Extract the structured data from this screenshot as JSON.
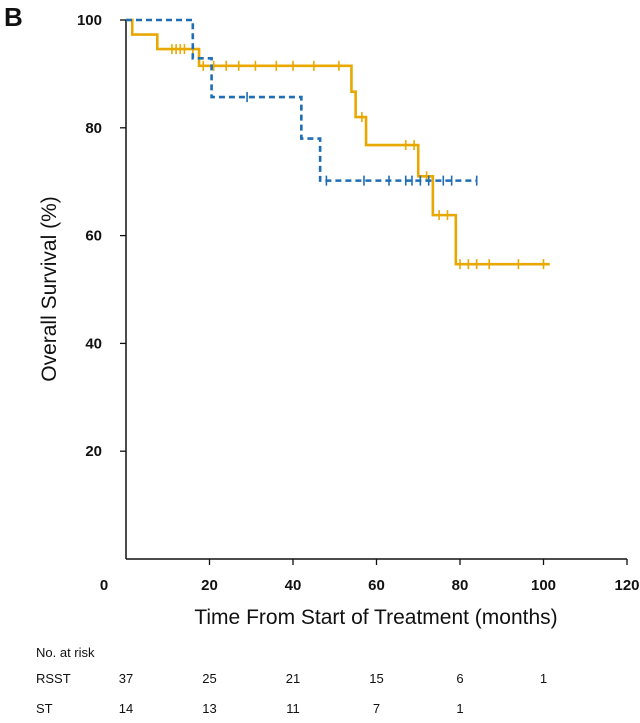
{
  "panel_label": "B",
  "chart_data": {
    "type": "line",
    "xlabel": "Time From Start of Treatment (months)",
    "ylabel": "Overall Survival (%)",
    "xlim": [
      0,
      120
    ],
    "ylim": [
      0,
      100
    ],
    "x_ticks": [
      0,
      20,
      40,
      60,
      80,
      100,
      120
    ],
    "y_ticks": [
      20,
      40,
      60,
      80,
      100
    ],
    "grid": false,
    "series": [
      {
        "name": "RSST",
        "color": "#e8a800",
        "style": "solid",
        "steps": [
          [
            0,
            100
          ],
          [
            1.5,
            97.3
          ],
          [
            7.5,
            94.6
          ],
          [
            17.5,
            91.5
          ],
          [
            54,
            86.7
          ],
          [
            55,
            82
          ],
          [
            57.5,
            76.8
          ],
          [
            70,
            71
          ],
          [
            73.5,
            63.8
          ],
          [
            79,
            54.7
          ],
          [
            101.5,
            54.7
          ]
        ],
        "censored": [
          [
            11,
            94.6
          ],
          [
            12,
            94.6
          ],
          [
            13,
            94.6
          ],
          [
            14,
            94.6
          ],
          [
            16,
            94.6
          ],
          [
            18.5,
            91.5
          ],
          [
            21,
            91.5
          ],
          [
            24,
            91.5
          ],
          [
            27,
            91.5
          ],
          [
            31,
            91.5
          ],
          [
            36,
            91.5
          ],
          [
            40,
            91.5
          ],
          [
            45,
            91.5
          ],
          [
            51,
            91.5
          ],
          [
            56.5,
            82
          ],
          [
            67,
            76.8
          ],
          [
            69,
            76.8
          ],
          [
            72,
            71
          ],
          [
            75,
            63.8
          ],
          [
            77,
            63.8
          ],
          [
            80,
            54.7
          ],
          [
            82,
            54.7
          ],
          [
            84,
            54.7
          ],
          [
            87,
            54.7
          ],
          [
            94,
            54.7
          ],
          [
            100,
            54.7
          ]
        ]
      },
      {
        "name": "ST",
        "color": "#1f6db5",
        "style": "dashed",
        "steps": [
          [
            0,
            100
          ],
          [
            16,
            92.9
          ],
          [
            20.5,
            85.7
          ],
          [
            42,
            78
          ],
          [
            46.5,
            70.2
          ],
          [
            84,
            70.2
          ]
        ],
        "censored": [
          [
            29,
            85.7
          ],
          [
            48,
            70.2
          ],
          [
            57,
            70.2
          ],
          [
            63,
            70.2
          ],
          [
            67,
            70.2
          ],
          [
            68.5,
            70.2
          ],
          [
            70.5,
            70.2
          ],
          [
            72.5,
            70.2
          ],
          [
            76,
            70.2
          ],
          [
            78,
            70.2
          ],
          [
            84,
            70.2
          ]
        ]
      }
    ]
  },
  "risk_table": {
    "title": "No. at risk",
    "times": [
      0,
      20,
      40,
      60,
      80,
      100
    ],
    "rows": [
      {
        "label": "RSST",
        "values": [
          "37",
          "25",
          "21",
          "15",
          "6",
          "1"
        ]
      },
      {
        "label": "ST",
        "values": [
          "14",
          "13",
          "11",
          "7",
          "1",
          ""
        ]
      }
    ]
  }
}
